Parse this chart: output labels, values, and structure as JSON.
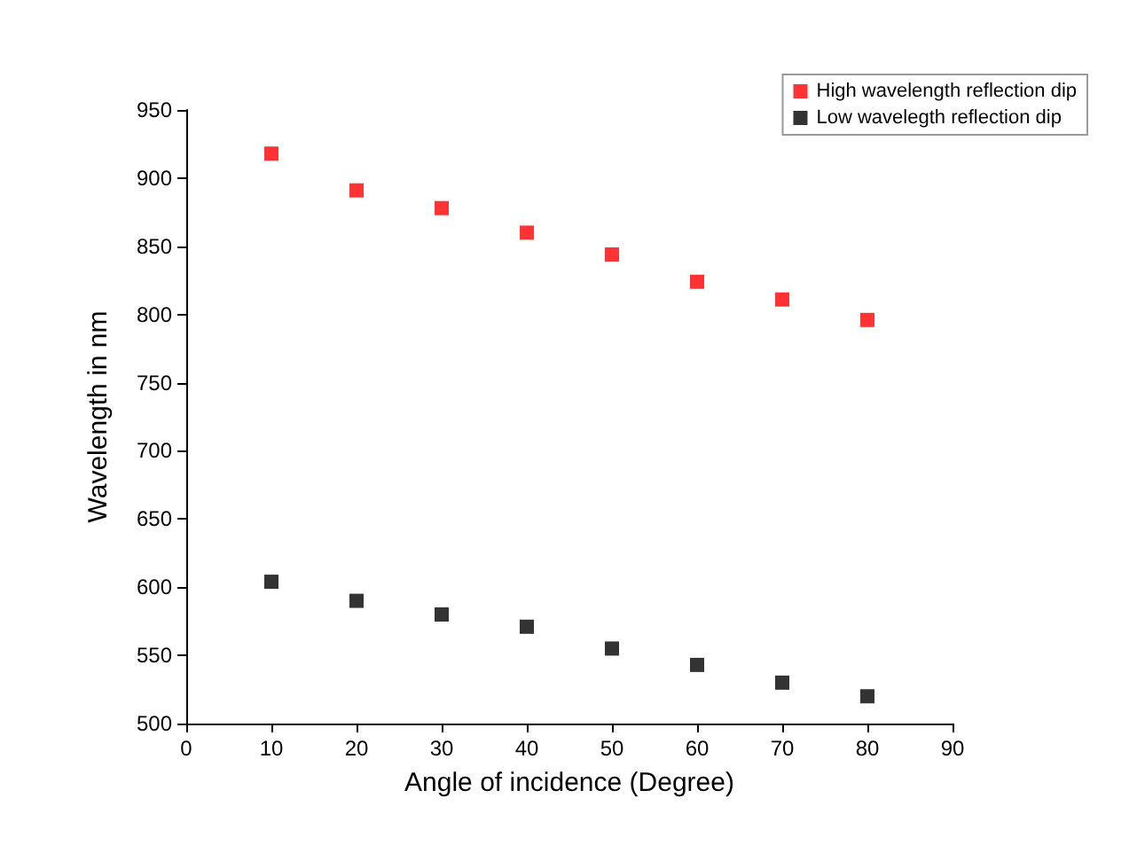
{
  "chart_data": {
    "type": "scatter",
    "xlabel": "Angle of incidence (Degree)",
    "ylabel": "Wavelength in nm",
    "x": [
      10,
      20,
      30,
      40,
      50,
      60,
      70,
      80
    ],
    "series": [
      {
        "name": "High wavelength reflection dip",
        "color": "#ff0000",
        "values": [
          918,
          891,
          878,
          860,
          844,
          824,
          811,
          796
        ]
      },
      {
        "name": "Low wavelegth reflection dip",
        "color": "#000000",
        "values": [
          604,
          590,
          580,
          571,
          555,
          543,
          530,
          520
        ]
      }
    ],
    "xlim": [
      0,
      90
    ],
    "xticks": [
      0,
      10,
      20,
      30,
      40,
      50,
      60,
      70,
      80,
      90
    ],
    "ylim": [
      500,
      950
    ],
    "yticks": [
      500,
      550,
      600,
      650,
      700,
      750,
      800,
      850,
      900,
      950
    ],
    "marker": "square",
    "grid": false,
    "legend": "top right"
  }
}
